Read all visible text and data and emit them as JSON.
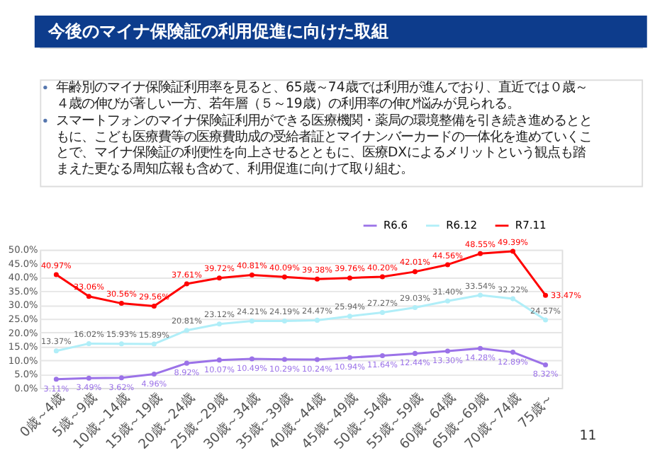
{
  "chart_data": {
    "type": "line",
    "title": "今後のマイナ保険証の利用促進に向けた取組",
    "annotations": [
      "年齢別のマイナ保険証利用率を見ると、65歳～74歳では利用が進んでおり、直近では０歳～４歳の伸びが著しい一方、若年層（５～19歳）の利用率の伸び悩みが見られる。",
      "スマートフォンのマイナ保険証利用ができる医療機関・薬局の環境整備を引き続き進めるとともに、こども医療費等の医療費助成の受給者証とマイナンバーカードの一体化を進めていくことで、マイナ保険証の利便性を向上させるとともに、医療DXによるメリットという観点も踏まえた更なる周知広報も含めて、利用促進に向けて取り組む。",
      "11"
    ],
    "categories": [
      "0歳～4歳",
      "5歳～9歳",
      "10歳～14歳",
      "15歳～19歳",
      "20歳～24歳",
      "25歳～29歳",
      "30歳～34歳",
      "35歳～39歳",
      "40歳～44歳",
      "45歳～49歳",
      "50歳～54歳",
      "55歳～59歳",
      "60歳～64歳",
      "65歳～69歳",
      "70歳～74歳",
      "75歳～"
    ],
    "series": [
      {
        "name": "R6.6",
        "color": "#9b72e8",
        "values": [
          3.11,
          3.49,
          3.62,
          4.96,
          8.92,
          10.07,
          10.49,
          10.29,
          10.24,
          10.94,
          11.64,
          12.44,
          13.3,
          14.28,
          12.89,
          8.32
        ],
        "value_labels": [
          "3.11%",
          "3.49%",
          "3.62%",
          "4.96%",
          "8.92%",
          "10.07%",
          "10.49%",
          "10.29%",
          "10.24%",
          "10.94%",
          "11.64%",
          "12.44%",
          "13.30%",
          "14.28%",
          "12.89%",
          "8.32%"
        ]
      },
      {
        "name": "R6.12",
        "color": "#b0eef8",
        "values": [
          13.37,
          16.02,
          15.93,
          15.89,
          20.81,
          23.12,
          24.21,
          24.19,
          24.47,
          25.94,
          27.27,
          29.03,
          31.4,
          33.54,
          32.22,
          24.57
        ],
        "value_labels": [
          "13.37%",
          "16.02%",
          "15.93%",
          "15.89%",
          "20.81%",
          "23.12%",
          "24.21%",
          "24.19%",
          "24.47%",
          "25.94%",
          "27.27%",
          "29.03%",
          "31.40%",
          "33.54%",
          "32.22%",
          "24.57%"
        ]
      },
      {
        "name": "R7.11",
        "color": "#ff0000",
        "values": [
          40.97,
          33.06,
          30.56,
          29.56,
          37.61,
          39.72,
          40.81,
          40.09,
          39.38,
          39.76,
          40.2,
          42.01,
          44.56,
          48.55,
          49.39,
          33.47
        ],
        "value_labels": [
          "40.97%",
          "33.06%",
          "30.56%",
          "29.56%",
          "37.61%",
          "39.72%",
          "40.81%",
          "40.09%",
          "39.38%",
          "39.76%",
          "40.20%",
          "42.01%",
          "44.56%",
          "48.55%",
          "49.39%",
          "33.47%"
        ]
      }
    ],
    "ylim": [
      0,
      50
    ],
    "yticks": [
      {
        "value": 0,
        "label": "0.0%"
      },
      {
        "value": 5,
        "label": "5.0%"
      },
      {
        "value": 10,
        "label": "10.0%"
      },
      {
        "value": 15,
        "label": "15.0%"
      },
      {
        "value": 20,
        "label": "20.0%"
      },
      {
        "value": 25,
        "label": "25.0%"
      },
      {
        "value": 30,
        "label": "30.0%"
      },
      {
        "value": 35,
        "label": "35.0%"
      },
      {
        "value": 40,
        "label": "40.0%"
      },
      {
        "value": 45,
        "label": "45.0%"
      },
      {
        "value": 50,
        "label": "50.0%"
      }
    ],
    "grid": "y",
    "legend": "top right",
    "marker": "circle",
    "line_style": "solid"
  }
}
